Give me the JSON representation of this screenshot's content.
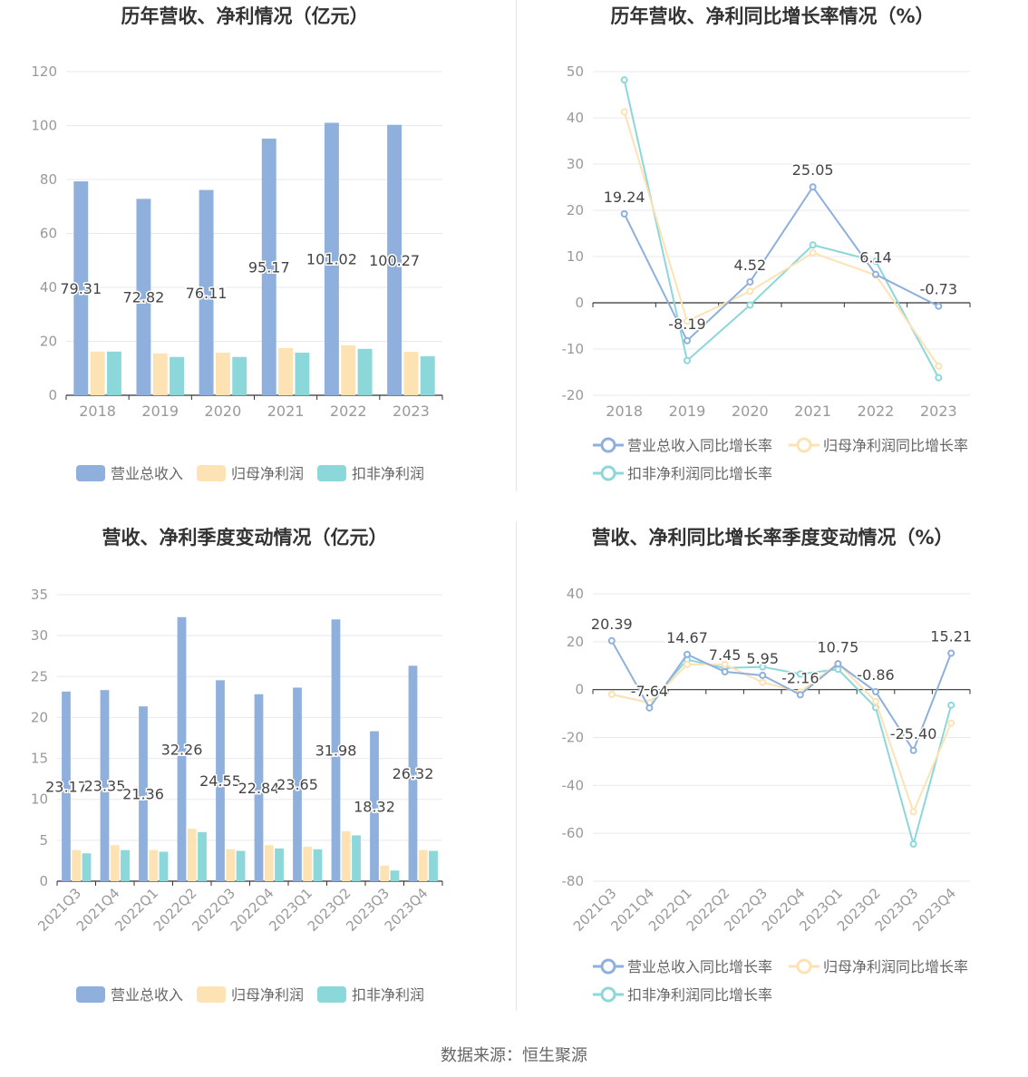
{
  "colors": {
    "revenue": "#8fb0dc",
    "net_profit": "#fde2b4",
    "deducted_profit": "#8bd7d9",
    "grid": "#e8e8f0",
    "axis": "#333333"
  },
  "footer": {
    "source": "数据来源：恒生聚源"
  },
  "chart_data": [
    {
      "id": "annual-revenue-profit",
      "type": "bar",
      "title": "历年营收、净利情况（亿元）",
      "categories": [
        "2018",
        "2019",
        "2020",
        "2021",
        "2022",
        "2023"
      ],
      "ylim": [
        0,
        120
      ],
      "yticks": [
        0,
        20,
        40,
        60,
        80,
        100,
        120
      ],
      "grid": true,
      "legend_position": "bottom",
      "series": [
        {
          "name": "营业总收入",
          "values": [
            79.31,
            72.82,
            76.11,
            95.17,
            101.02,
            100.27
          ],
          "labels": [
            "79.31",
            "72.82",
            "76.11",
            "95.17",
            "101.02",
            "100.27"
          ]
        },
        {
          "name": "归母净利润",
          "values": [
            16.2,
            15.5,
            15.8,
            17.5,
            18.5,
            16.1
          ]
        },
        {
          "name": "扣非净利润",
          "values": [
            16.2,
            14.2,
            14.2,
            15.8,
            17.2,
            14.5
          ]
        }
      ]
    },
    {
      "id": "annual-growth",
      "type": "line",
      "title": "历年营收、净利同比增长率情况（%）",
      "categories": [
        "2018",
        "2019",
        "2020",
        "2021",
        "2022",
        "2023"
      ],
      "ylim": [
        -20,
        50
      ],
      "yticks": [
        -20,
        -10,
        0,
        10,
        20,
        30,
        40,
        50
      ],
      "grid": true,
      "legend_position": "bottom",
      "series": [
        {
          "name": "营业总收入同比增长率",
          "values": [
            19.24,
            -8.19,
            4.52,
            25.05,
            6.14,
            -0.73
          ],
          "labels": [
            "19.24",
            "-8.19",
            "4.52",
            "25.05",
            "6.14",
            "-0.73"
          ]
        },
        {
          "name": "归母净利润同比增长率",
          "values": [
            41.3,
            -4.0,
            2.5,
            10.8,
            6.0,
            -13.7
          ]
        },
        {
          "name": "扣非净利润同比增长率",
          "values": [
            48.2,
            -12.5,
            -0.5,
            12.5,
            9.0,
            -16.2
          ]
        }
      ]
    },
    {
      "id": "quarterly-revenue-profit",
      "type": "bar",
      "title": "营收、净利季度变动情况（亿元）",
      "categories": [
        "2021Q3",
        "2021Q4",
        "2022Q1",
        "2022Q2",
        "2022Q3",
        "2022Q4",
        "2023Q1",
        "2023Q2",
        "2023Q3",
        "2023Q4"
      ],
      "ylim": [
        0,
        35
      ],
      "yticks": [
        0,
        5,
        10,
        15,
        20,
        25,
        30,
        35
      ],
      "grid": true,
      "legend_position": "bottom",
      "series": [
        {
          "name": "营业总收入",
          "values": [
            23.17,
            23.35,
            21.36,
            32.26,
            24.55,
            22.84,
            23.65,
            31.98,
            18.32,
            26.32
          ],
          "labels": [
            "23.17",
            "23.35",
            "21.36",
            "32.26",
            "24.55",
            "22.84",
            "23.65",
            "31.98",
            "18.32",
            "26.32"
          ]
        },
        {
          "name": "归母净利润",
          "values": [
            3.8,
            4.4,
            3.8,
            6.4,
            3.9,
            4.4,
            4.2,
            6.1,
            1.9,
            3.8
          ]
        },
        {
          "name": "扣非净利润",
          "values": [
            3.4,
            3.8,
            3.6,
            6.0,
            3.7,
            4.0,
            3.9,
            5.6,
            1.3,
            3.7
          ]
        }
      ]
    },
    {
      "id": "quarterly-growth",
      "type": "line",
      "title": "营收、净利同比增长率季度变动情况（%）",
      "categories": [
        "2021Q3",
        "2021Q4",
        "2022Q1",
        "2022Q2",
        "2022Q3",
        "2022Q4",
        "2023Q1",
        "2023Q2",
        "2023Q3",
        "2023Q4"
      ],
      "ylim": [
        -80,
        40
      ],
      "yticks": [
        -80,
        -60,
        -40,
        -20,
        0,
        20,
        40
      ],
      "grid": true,
      "legend_position": "bottom",
      "series": [
        {
          "name": "营业总收入同比增长率",
          "values": [
            20.39,
            -7.64,
            14.67,
            7.45,
            5.95,
            -2.16,
            10.75,
            -0.86,
            -25.4,
            15.21
          ],
          "labels": [
            "20.39",
            "-7.64",
            "14.67",
            "7.45",
            "5.95",
            "-2.16",
            "10.75",
            "-0.86",
            "-25.40",
            "15.21"
          ]
        },
        {
          "name": "归母净利润同比增长率",
          "values": [
            -2.0,
            -5.5,
            10.5,
            10.5,
            3.0,
            -1.0,
            11.0,
            -5.0,
            -51.0,
            -14.0
          ]
        },
        {
          "name": "扣非净利润同比增长率",
          "values": [
            -2.0,
            -5.5,
            12.5,
            9.0,
            9.5,
            6.5,
            8.5,
            -7.5,
            -64.5,
            -6.5
          ]
        }
      ]
    }
  ]
}
